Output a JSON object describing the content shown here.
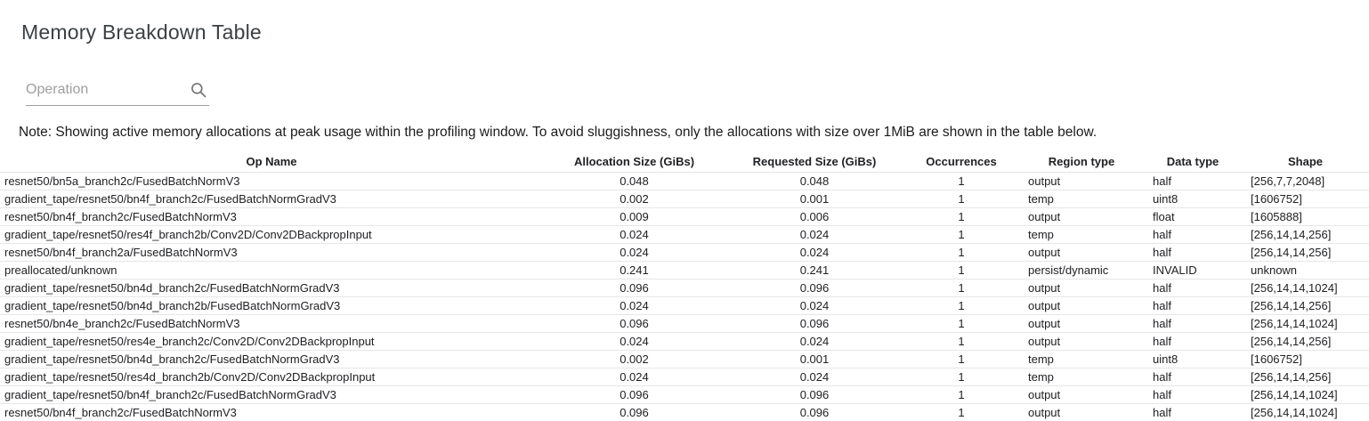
{
  "header": {
    "title": "Memory Breakdown Table"
  },
  "search": {
    "placeholder": "Operation",
    "value": "",
    "icon": "search-icon"
  },
  "note": {
    "text": "Note: Showing active memory allocations at peak usage within the profiling window. To avoid sluggishness, only the allocations with size over 1MiB are shown in the table below."
  },
  "colors": {
    "title_text": "#3c4043",
    "body_text": "#202124",
    "placeholder_text": "#9e9e9e",
    "row_border": "#e6e6e6",
    "icon_gray": "#757575"
  },
  "table": {
    "columns": [
      "Op Name",
      "Allocation Size (GiBs)",
      "Requested Size (GiBs)",
      "Occurrences",
      "Region type",
      "Data type",
      "Shape"
    ],
    "rows": [
      [
        "resnet50/bn5a_branch2c/FusedBatchNormV3",
        "0.048",
        "0.048",
        "1",
        "output",
        "half",
        "[256,7,7,2048]"
      ],
      [
        "gradient_tape/resnet50/bn4f_branch2c/FusedBatchNormGradV3",
        "0.002",
        "0.001",
        "1",
        "temp",
        "uint8",
        "[1606752]"
      ],
      [
        "resnet50/bn4f_branch2c/FusedBatchNormV3",
        "0.009",
        "0.006",
        "1",
        "output",
        "float",
        "[1605888]"
      ],
      [
        "gradient_tape/resnet50/res4f_branch2b/Conv2D/Conv2DBackpropInput",
        "0.024",
        "0.024",
        "1",
        "temp",
        "half",
        "[256,14,14,256]"
      ],
      [
        "resnet50/bn4f_branch2a/FusedBatchNormV3",
        "0.024",
        "0.024",
        "1",
        "output",
        "half",
        "[256,14,14,256]"
      ],
      [
        "preallocated/unknown",
        "0.241",
        "0.241",
        "1",
        "persist/dynamic",
        "INVALID",
        "unknown"
      ],
      [
        "gradient_tape/resnet50/bn4d_branch2c/FusedBatchNormGradV3",
        "0.096",
        "0.096",
        "1",
        "output",
        "half",
        "[256,14,14,1024]"
      ],
      [
        "gradient_tape/resnet50/bn4d_branch2b/FusedBatchNormGradV3",
        "0.024",
        "0.024",
        "1",
        "output",
        "half",
        "[256,14,14,256]"
      ],
      [
        "resnet50/bn4e_branch2c/FusedBatchNormV3",
        "0.096",
        "0.096",
        "1",
        "output",
        "half",
        "[256,14,14,1024]"
      ],
      [
        "gradient_tape/resnet50/res4e_branch2c/Conv2D/Conv2DBackpropInput",
        "0.024",
        "0.024",
        "1",
        "output",
        "half",
        "[256,14,14,256]"
      ],
      [
        "gradient_tape/resnet50/bn4d_branch2c/FusedBatchNormGradV3",
        "0.002",
        "0.001",
        "1",
        "temp",
        "uint8",
        "[1606752]"
      ],
      [
        "gradient_tape/resnet50/res4d_branch2b/Conv2D/Conv2DBackpropInput",
        "0.024",
        "0.024",
        "1",
        "temp",
        "half",
        "[256,14,14,256]"
      ],
      [
        "gradient_tape/resnet50/bn4f_branch2c/FusedBatchNormGradV3",
        "0.096",
        "0.096",
        "1",
        "output",
        "half",
        "[256,14,14,1024]"
      ],
      [
        "resnet50/bn4f_branch2c/FusedBatchNormV3",
        "0.096",
        "0.096",
        "1",
        "output",
        "half",
        "[256,14,14,1024]"
      ]
    ]
  }
}
